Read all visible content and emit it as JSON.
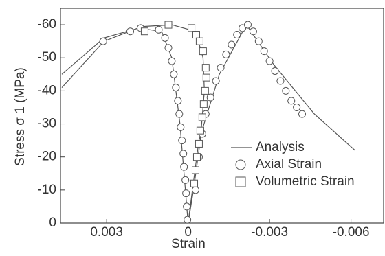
{
  "chart_data": {
    "type": "scatter",
    "xlabel": "Strain",
    "ylabel": "Stress σ 1 (MPa)",
    "xlim": [
      0.0047,
      -0.0072
    ],
    "ylim": [
      0,
      -65
    ],
    "xticks": [
      0.003,
      0,
      -0.003,
      -0.006
    ],
    "yticks": [
      0,
      -10,
      -20,
      -30,
      -40,
      -50,
      -60
    ],
    "series": [
      {
        "name": "Analysis",
        "kind": "line",
        "color": "#555",
        "x": [
          0.00465,
          0.0031,
          0.00185,
          0.000975,
          0.0006,
          0.0003,
          0.0001,
          0,
          null,
          0,
          -0.0004,
          -0.00115,
          -0.00215,
          -0.00315,
          -0.00465,
          -0.00615,
          null,
          0.00465,
          0.0031,
          0.0016,
          0.0006,
          -0.000275,
          -0.00055,
          -0.0006,
          -0.00045,
          -0.0002,
          0
        ],
        "values": [
          -41,
          -55,
          -59,
          -58,
          -50,
          -30,
          -10,
          0,
          null,
          0,
          -25,
          -45,
          -60,
          -48,
          -33,
          -22,
          null,
          -45,
          -56,
          -59.5,
          -60,
          -58,
          -50,
          -40,
          -25,
          -10,
          0
        ]
      },
      {
        "name": "Axial Strain",
        "kind": "circle",
        "color": "#555",
        "x": [
          0.003125,
          0.00213,
          0.00175,
          0.00108,
          0.00085,
          0.000725,
          0.0006,
          0.000525,
          0.00045,
          0.000375,
          0.000325,
          0.000275,
          0.000225,
          0.000175,
          0.00015,
          0.0001,
          7.5e-05,
          5e-05,
          2.5e-05,
          -0.000275,
          -0.0004,
          -0.000525,
          -0.00065,
          -0.000825,
          -0.001025,
          -0.0012,
          -0.0014,
          -0.0016,
          -0.0018,
          -0.002,
          -0.0022,
          -0.0024,
          -0.0026,
          -0.0028,
          -0.003,
          -0.0032,
          -0.0034,
          -0.0036,
          -0.0038,
          -0.004,
          -0.0042
        ],
        "values": [
          -55,
          -58,
          -59,
          -58.5,
          -56,
          -53,
          -49,
          -45,
          -41,
          -37,
          -33,
          -29,
          -25,
          -21,
          -17,
          -13,
          -9,
          -5,
          -1,
          -10,
          -20,
          -27,
          -33,
          -38,
          -43,
          -47,
          -51,
          -54,
          -57,
          -59,
          -60,
          -58,
          -55,
          -52,
          -49,
          -46,
          -43,
          -40,
          -37,
          -35,
          -33
        ]
      },
      {
        "name": "Volumetric Strain",
        "kind": "square",
        "color": "#555",
        "x": [
          0.0016,
          0.000725,
          -0.000125,
          -0.0003,
          -0.000425,
          -0.00055,
          -0.00065,
          -0.000675,
          -0.000625,
          -0.000575,
          -0.000525,
          -0.00045,
          -0.0004,
          -0.000325,
          -0.000275,
          -0.000225
        ],
        "values": [
          -58,
          -60,
          -59,
          -57,
          -55,
          -52,
          -47,
          -44,
          -40,
          -36,
          -32,
          -28,
          -24,
          -20,
          -16,
          -12
        ]
      }
    ]
  }
}
